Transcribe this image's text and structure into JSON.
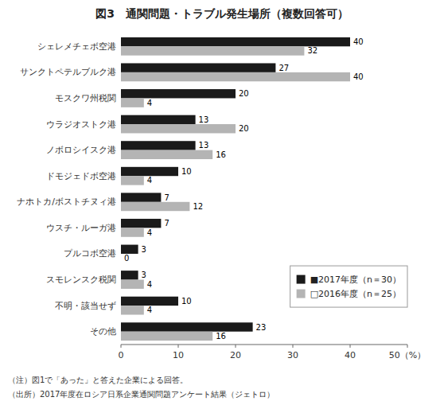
{
  "chart_data": {
    "type": "bar",
    "orientation": "horizontal",
    "title": "図3　通関問題・トラブル発生場所（複数回答可）",
    "categories": [
      "シェレメチェボ空港",
      "サンクトペテルブルク港",
      "モスクワ州税関",
      "ウラジオストク港",
      "ノボロシイスク港",
      "ドモジェドボ空港",
      "ナホトカ/ボストチヌィ港",
      "ウスチ・ルーガ港",
      "プルコボ空港",
      "スモレンスク税関",
      "不明・該当せず",
      "その他"
    ],
    "series": [
      {
        "name": "■2017年度（n＝30）",
        "color": "#1a1a1a",
        "values": [
          40,
          27,
          20,
          13,
          13,
          10,
          7,
          7,
          3,
          3,
          10,
          23
        ]
      },
      {
        "name": "□2016年度（n＝25）",
        "color": "#b4b4b4",
        "values": [
          32,
          40,
          4,
          20,
          16,
          4,
          12,
          4,
          0,
          4,
          4,
          16
        ]
      }
    ],
    "xlim": [
      0,
      50
    ],
    "xticks": [
      0,
      10,
      20,
      30,
      40,
      {
        "value": 50,
        "label": "50（%）"
      }
    ],
    "data_labels": true,
    "legend": "lower right",
    "grid": false,
    "annotations": [
      "（注）図1で「あった」と答えた企業による回答。",
      "（出所）2017年度在ロシア日系企業通関問題アンケート結果（ジェトロ）"
    ]
  }
}
